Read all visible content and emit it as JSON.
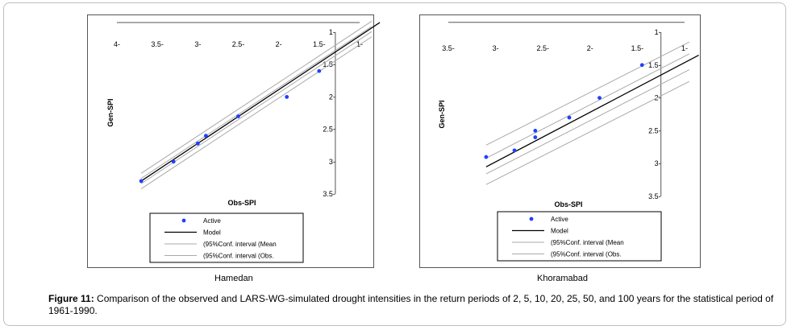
{
  "figure": {
    "label": "Figure 11:",
    "caption": "Comparison of the observed and LARS-WG-simulated drought intensities in the return periods of 2, 5, 10, 20, 25, 50, and 100 years for the statistical period of 1961-1990."
  },
  "colors": {
    "active": "#1f3fff",
    "model": "#000000",
    "ci": "#aaaaaa"
  },
  "chart_data": [
    {
      "type": "scatter",
      "subtitle": "Hamedan",
      "xlabel": "Obs-SPI",
      "ylabel": "Gen-SPI",
      "xticks": [
        "4-",
        "3.5-",
        "3-",
        "2.5-",
        "2-",
        "1.5-",
        "1-"
      ],
      "yticks": [
        "1-",
        "1.5-",
        "2-",
        "2.5-",
        "3-",
        "3.5-"
      ],
      "legend": [
        "Active",
        "Model",
        "(95%Conf. interval (Mean",
        "(95%Conf. interval (Obs."
      ],
      "series": [
        {
          "name": "Active",
          "x": [
            3.7,
            3.3,
            3.0,
            2.9,
            2.5,
            1.9,
            1.5
          ],
          "y": [
            3.3,
            3.0,
            2.72,
            2.6,
            2.3,
            2.0,
            1.6
          ]
        }
      ]
    },
    {
      "type": "scatter",
      "subtitle": "Khoramabad",
      "xlabel": "Obs-SPI",
      "ylabel": "Gen-SPI",
      "xticks": [
        "3.5-",
        "3-",
        "2.5-",
        "2-",
        "1.5-",
        "1-"
      ],
      "yticks": [
        "1-",
        "1.5-",
        "2-",
        "2.5-",
        "3-",
        "3.5-"
      ],
      "legend": [
        "Active",
        "Model",
        "(95%Conf. interval (Mean",
        "(95%Conf. interval (Obs."
      ],
      "series": [
        {
          "name": "Active",
          "x": [
            3.1,
            2.8,
            2.58,
            2.58,
            2.22,
            1.9,
            1.45
          ],
          "y": [
            2.9,
            2.8,
            2.6,
            2.5,
            2.3,
            2.0,
            1.5
          ]
        }
      ]
    }
  ]
}
